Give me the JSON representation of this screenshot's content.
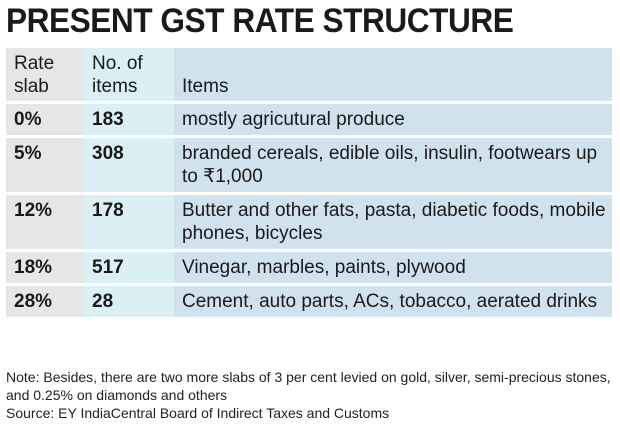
{
  "title": "PRESENT GST RATE STRUCTURE",
  "chart_data": {
    "type": "table",
    "columns": [
      {
        "line1": "Rate",
        "line2": "slab"
      },
      {
        "line1": "No. of",
        "line2": "items"
      },
      {
        "line1": "",
        "line2": "Items"
      }
    ],
    "rows": [
      {
        "rate": "0%",
        "count": 183,
        "items": "mostly agricutural produce"
      },
      {
        "rate": "5%",
        "count": 308,
        "items": "branded cereals, edible oils, insulin, footwears up to ₹1,000"
      },
      {
        "rate": "12%",
        "count": 178,
        "items": "Butter and other fats, pasta, diabetic foods, mobile phones, bicycles"
      },
      {
        "rate": "18%",
        "count": 517,
        "items": "Vinegar, marbles, paints, plywood"
      },
      {
        "rate": "28%",
        "count": 28,
        "items": "Cement, auto parts, ACs, tobacco, aerated drinks"
      }
    ]
  },
  "note": "Note: Besides, there are two more slabs of 3 per cent levied on gold, silver, semi-precious stones, and 0.25% on diamonds and others",
  "source": "Source: EY IndiaCentral Board of Indirect Taxes and Customs",
  "colors": {
    "rate_column": "#e6e6e6",
    "count_column": "#daf0f4",
    "items_column": "#cfe2ee"
  }
}
